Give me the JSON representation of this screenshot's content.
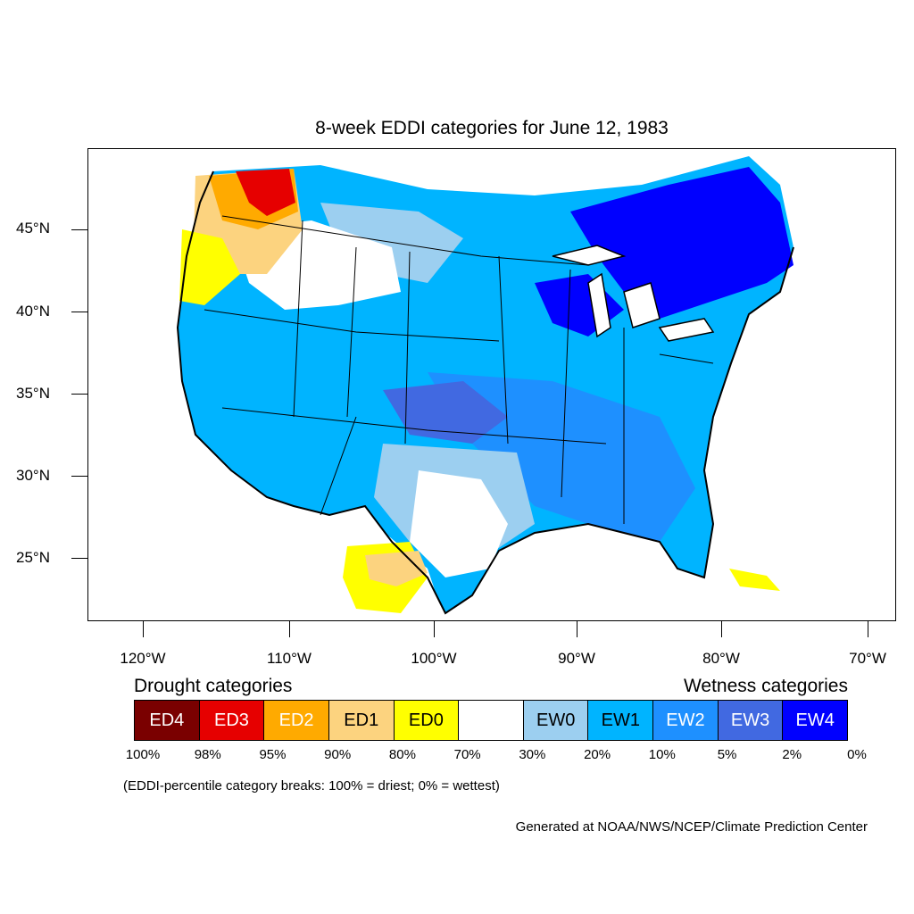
{
  "title": "8-week EDDI categories for June 12, 1983",
  "map": {
    "lat_ticks": [
      {
        "label": "45°N",
        "value": 45
      },
      {
        "label": "40°N",
        "value": 40
      },
      {
        "label": "35°N",
        "value": 35
      },
      {
        "label": "30°N",
        "value": 30
      },
      {
        "label": "25°N",
        "value": 25
      }
    ],
    "lon_ticks": [
      {
        "label": "120°W",
        "value": -120
      },
      {
        "label": "110°W",
        "value": -110
      },
      {
        "label": "100°W",
        "value": -100
      },
      {
        "label": "90°W",
        "value": -90
      },
      {
        "label": "80°W",
        "value": -80
      },
      {
        "label": "70°W",
        "value": -70
      }
    ]
  },
  "legend": {
    "drought_heading": "Drought categories",
    "wetness_heading": "Wetness categories",
    "categories": [
      {
        "label": "ED4",
        "color": "#7a0000",
        "text_color": "#ffffff"
      },
      {
        "label": "ED3",
        "color": "#e60000",
        "text_color": "#ffffff"
      },
      {
        "label": "ED2",
        "color": "#ffaa00",
        "text_color": "#ffffff"
      },
      {
        "label": "ED1",
        "color": "#fcd37f",
        "text_color": "#000000"
      },
      {
        "label": "ED0",
        "color": "#ffff00",
        "text_color": "#000000"
      },
      {
        "label": "",
        "color": "#ffffff",
        "text_color": "#000000"
      },
      {
        "label": "EW0",
        "color": "#9ccff0",
        "text_color": "#000000"
      },
      {
        "label": "EW1",
        "color": "#00b4ff",
        "text_color": "#000000"
      },
      {
        "label": "EW2",
        "color": "#1e90ff",
        "text_color": "#ffffff"
      },
      {
        "label": "EW3",
        "color": "#4169e1",
        "text_color": "#ffffff"
      },
      {
        "label": "EW4",
        "color": "#0000ff",
        "text_color": "#ffffff"
      }
    ],
    "breaks": [
      "100%",
      "98%",
      "95%",
      "90%",
      "80%",
      "70%",
      "30%",
      "20%",
      "10%",
      "5%",
      "2%",
      "0%"
    ],
    "note": "(EDDI-percentile category breaks: 100% = driest; 0% = wettest)"
  },
  "credit": "Generated at NOAA/NWS/NCEP/Climate Prediction Center"
}
